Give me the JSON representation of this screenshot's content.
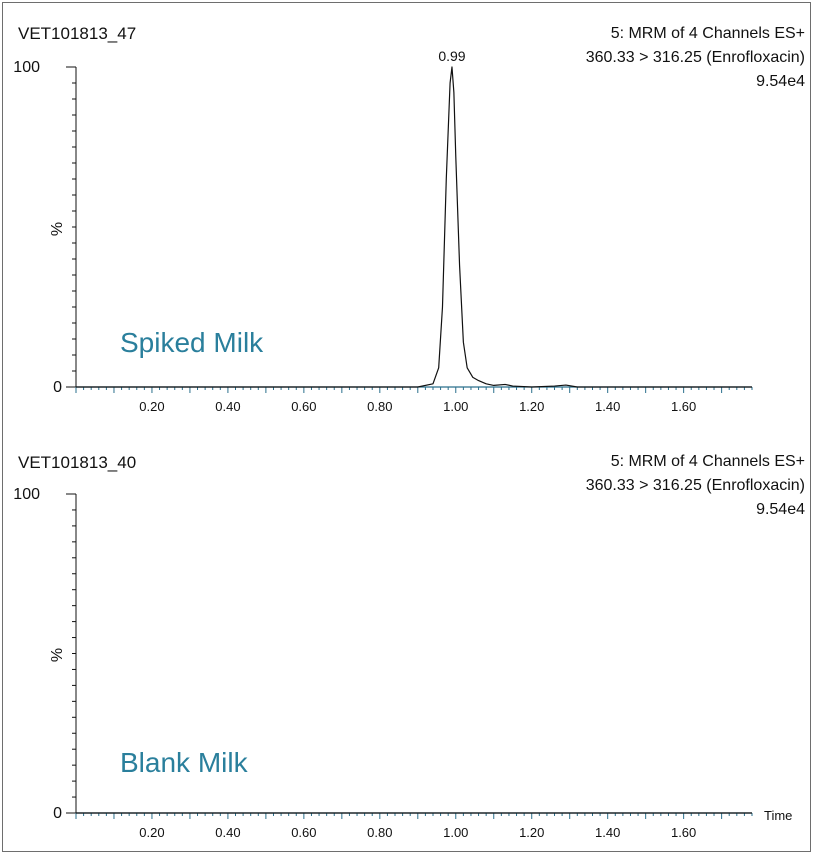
{
  "chart_data": [
    {
      "type": "line",
      "sample_id": "VET101813_47",
      "channel": "5: MRM of 4 Channels ES+",
      "transition": "360.33 > 316.25 (Enrofloxacin)",
      "intensity": "9.54e4",
      "annotation": "Spiked Milk",
      "ylabel": "%",
      "xlabel": "",
      "xlim": [
        0.0,
        1.78
      ],
      "ylim": [
        0,
        100
      ],
      "x_ticks": [
        "0.20",
        "0.40",
        "0.60",
        "0.80",
        "1.00",
        "1.20",
        "1.40",
        "1.60"
      ],
      "y_ticks": [
        "0",
        "100"
      ],
      "peak_label": "0.99",
      "series": [
        {
          "x": [
            0.0,
            0.9,
            0.94,
            0.955,
            0.965,
            0.975,
            0.985,
            0.99,
            0.995,
            1.0,
            1.01,
            1.02,
            1.03,
            1.045,
            1.06,
            1.08,
            1.1,
            1.13,
            1.15,
            1.2,
            1.26,
            1.29,
            1.32,
            1.78
          ],
          "y": [
            0,
            0,
            1,
            6,
            25,
            65,
            95,
            100,
            92,
            72,
            38,
            14,
            6,
            3,
            2,
            1,
            0.5,
            0.8,
            0.3,
            0,
            0.3,
            0.6,
            0,
            0
          ]
        }
      ],
      "grid": false,
      "color": "#111111"
    },
    {
      "type": "line",
      "sample_id": "VET101813_40",
      "channel": "5: MRM of 4 Channels ES+",
      "transition": "360.33 > 316.25 (Enrofloxacin)",
      "intensity": "9.54e4",
      "annotation": "Blank Milk",
      "ylabel": "%",
      "xlabel": "Time",
      "xlim": [
        0.0,
        1.78
      ],
      "ylim": [
        0,
        100
      ],
      "x_ticks": [
        "0.20",
        "0.40",
        "0.60",
        "0.80",
        "1.00",
        "1.20",
        "1.40",
        "1.60"
      ],
      "y_ticks": [
        "0",
        "100"
      ],
      "series": [
        {
          "x": [
            0.0,
            1.78
          ],
          "y": [
            0,
            0
          ]
        }
      ],
      "grid": false,
      "color": "#111111"
    }
  ]
}
